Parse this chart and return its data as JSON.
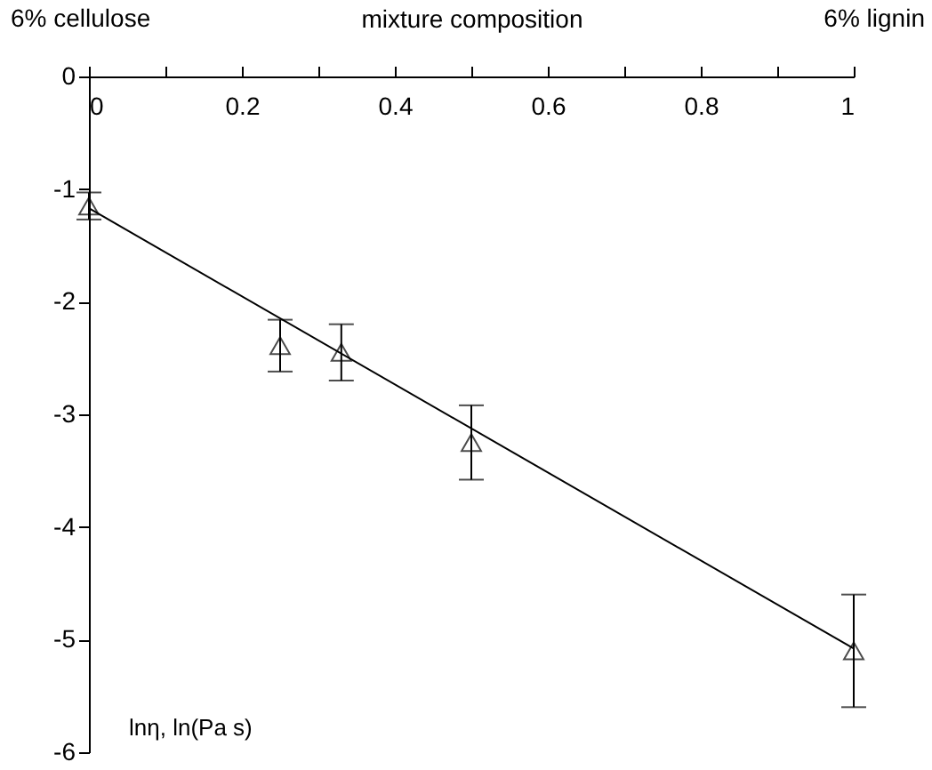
{
  "chart_data": {
    "type": "scatter",
    "xlabel": "mixture composition",
    "ylabel": "lnη, ln(Pa s)",
    "annotations": [
      "6% cellulose",
      "6% lignin"
    ],
    "x": [
      0,
      0.25,
      0.33,
      0.5,
      1
    ],
    "series": [
      {
        "color": "#000000",
        "marker": "triangle",
        "values": [
          -1.15,
          -2.39,
          -2.45,
          -3.25,
          -5.1
        ],
        "errors": [
          0.12,
          0.23,
          0.25,
          0.33,
          0.5
        ]
      },
      {
        "type": "line",
        "color": "#000000",
        "x": [
          0,
          1
        ],
        "values": [
          -1.17,
          -5.08
        ]
      }
    ],
    "xlim": [
      0,
      1
    ],
    "ylim": [
      -6,
      0
    ],
    "xticks": [
      0,
      {
        "value": 0.1,
        "label": null
      },
      0.2,
      {
        "value": 0.3,
        "label": null
      },
      0.4,
      {
        "value": 0.5,
        "label": null
      },
      0.6,
      {
        "value": 0.7,
        "label": null
      },
      0.8,
      {
        "value": 0.9,
        "label": null
      },
      1
    ],
    "yticks": [
      -6,
      -5,
      -4,
      -3,
      -2,
      -1,
      0
    ],
    "grid": false
  }
}
